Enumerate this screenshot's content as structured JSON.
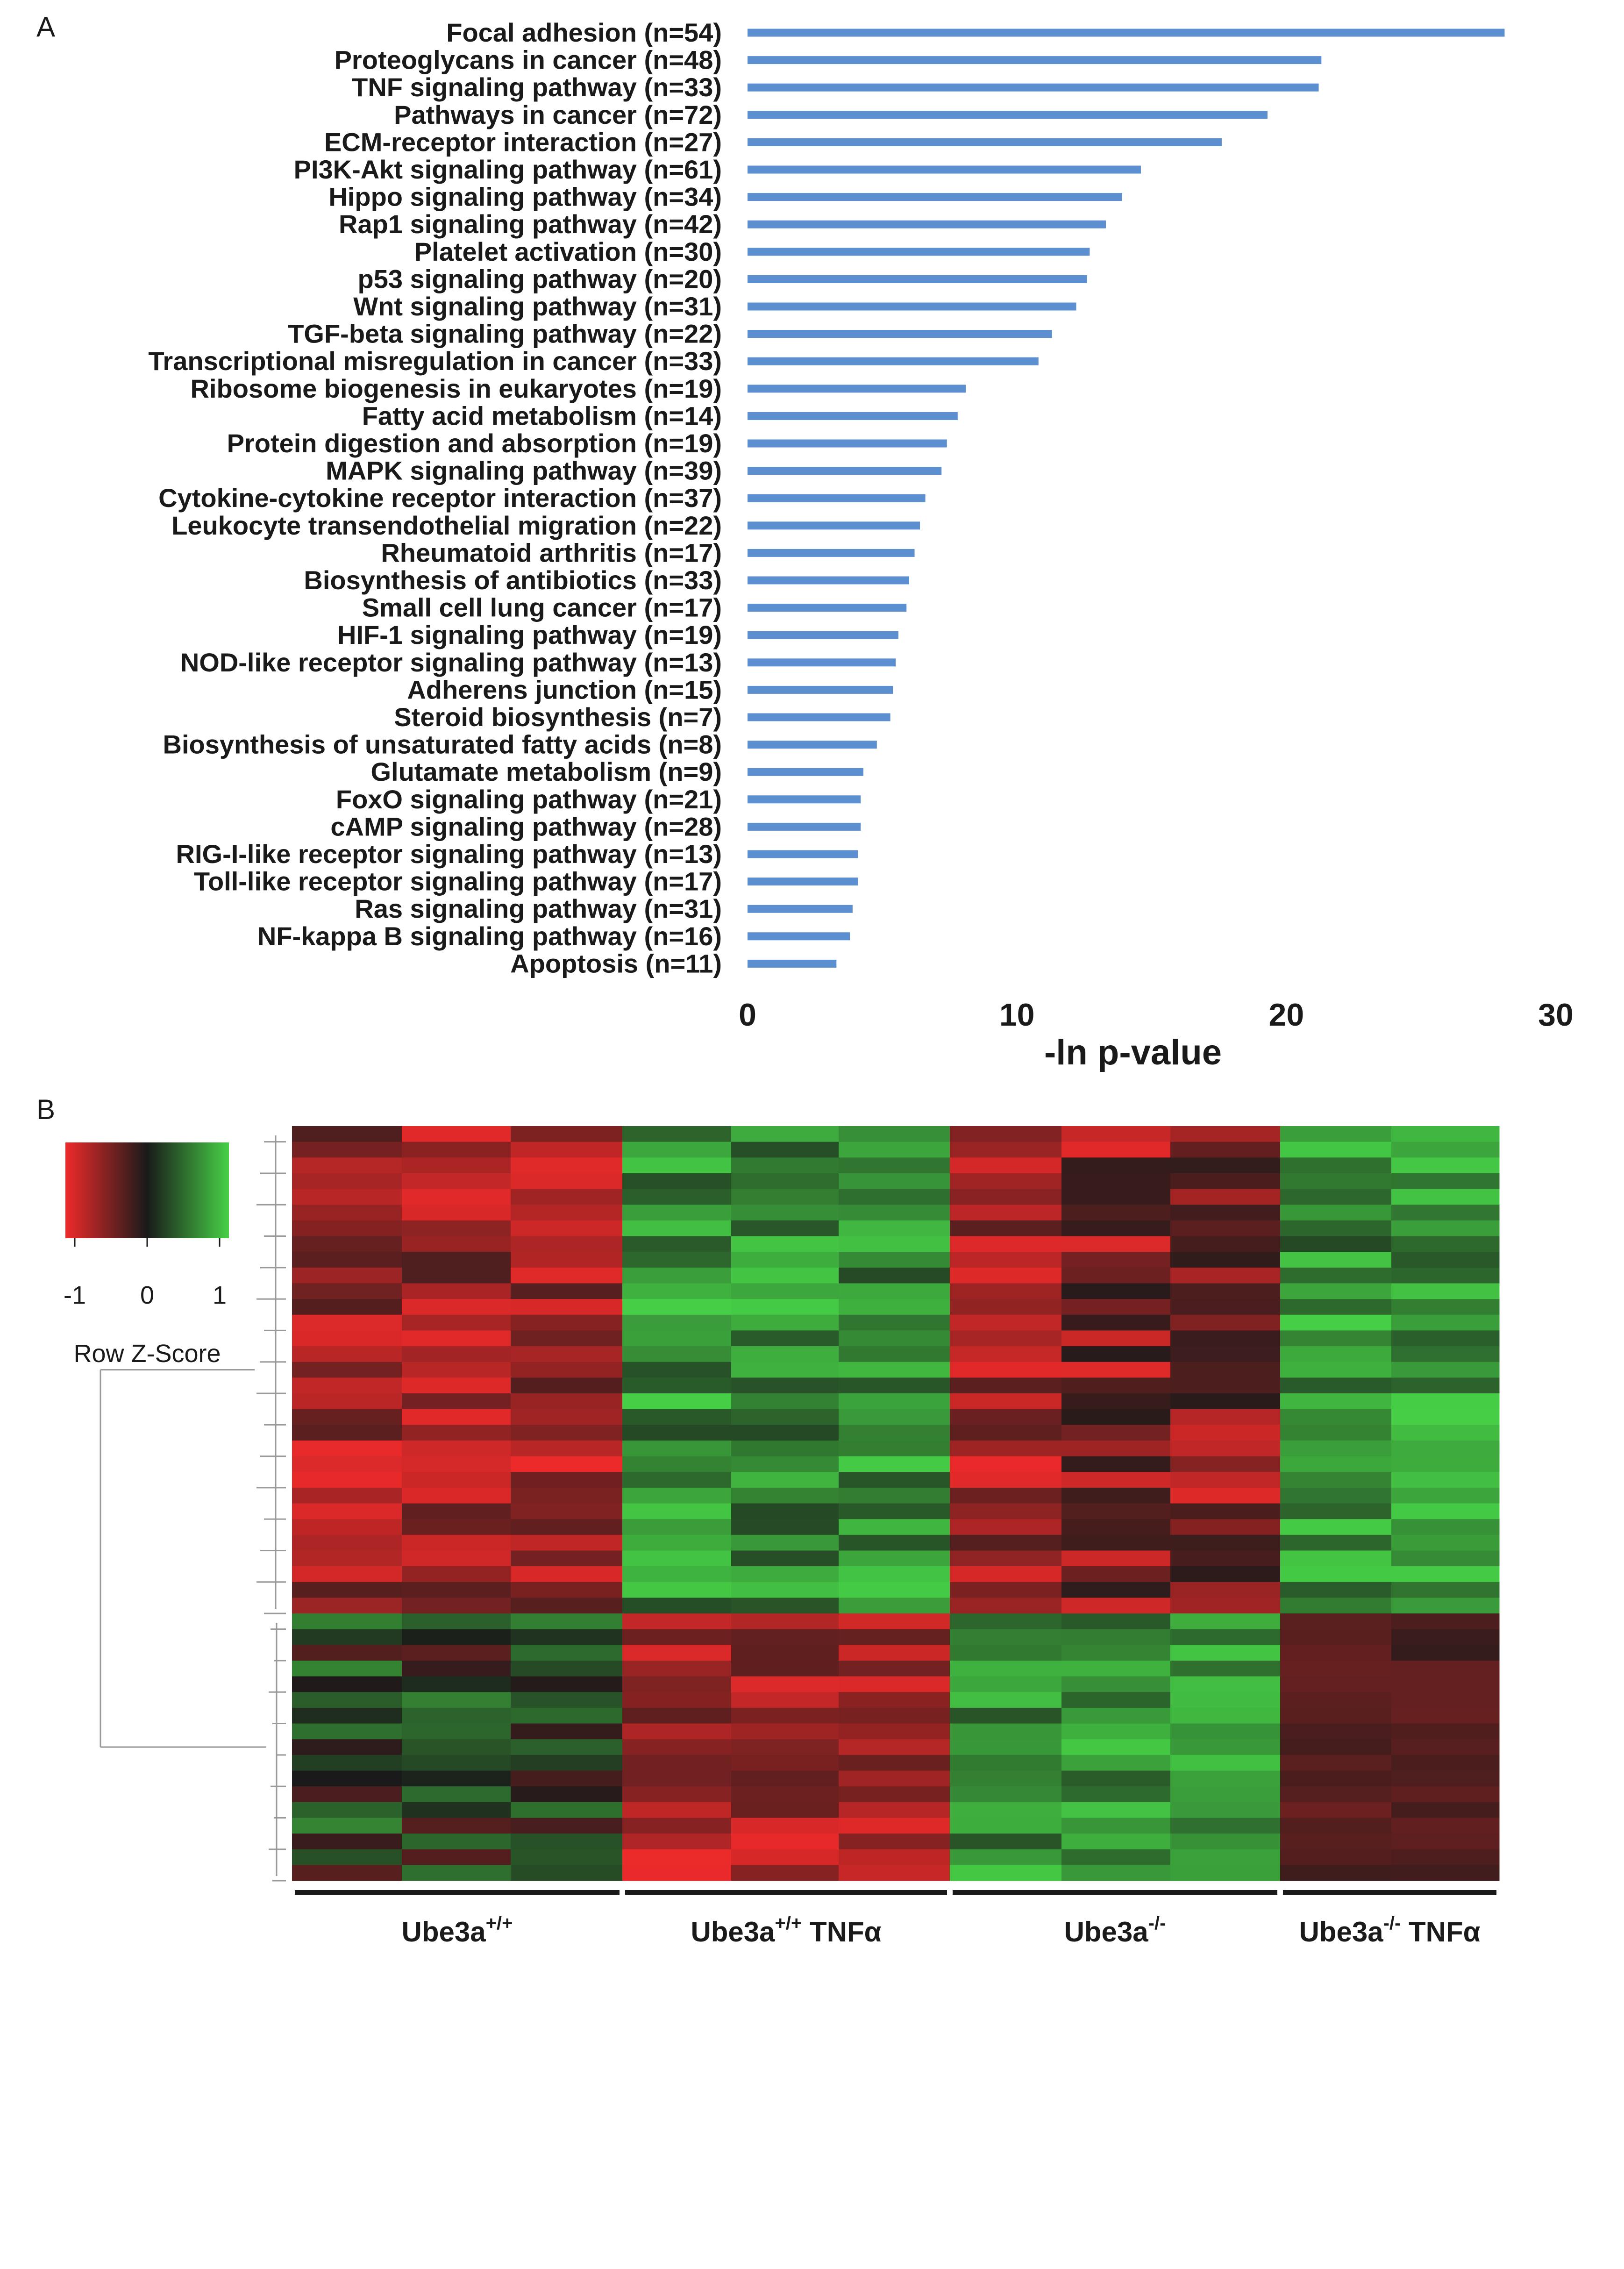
{
  "panel_a_label": "A",
  "panel_b_label": "B",
  "chart_data": [
    {
      "type": "bar",
      "orientation": "horizontal",
      "categories": [
        "Focal adhesion (n=54)",
        "Proteoglycans in cancer (n=48)",
        "TNF signaling pathway (n=33)",
        "Pathways in cancer (n=72)",
        "ECM-receptor interaction (n=27)",
        "PI3K-Akt signaling pathway (n=61)",
        "Hippo signaling pathway (n=34)",
        "Rap1 signaling pathway (n=42)",
        "Platelet activation (n=30)",
        "p53 signaling pathway (n=20)",
        "Wnt signaling pathway (n=31)",
        "TGF-beta signaling pathway (n=22)",
        "Transcriptional misregulation in cancer (n=33)",
        "Ribosome biogenesis in eukaryotes (n=19)",
        "Fatty acid metabolism (n=14)",
        "Protein digestion and absorption (n=19)",
        "MAPK signaling pathway (n=39)",
        "Cytokine-cytokine receptor interaction (n=37)",
        "Leukocyte transendothelial migration (n=22)",
        "Rheumatoid arthritis (n=17)",
        "Biosynthesis of antibiotics (n=33)",
        "Small cell lung cancer (n=17)",
        "HIF-1 signaling pathway (n=19)",
        "NOD-like receptor signaling pathway (n=13)",
        "Adherens junction (n=15)",
        "Steroid biosynthesis (n=7)",
        "Biosynthesis of unsaturated fatty acids (n=8)",
        "Glutamate metabolism (n=9)",
        "FoxO signaling pathway (n=21)",
        "cAMP signaling pathway (n=28)",
        "RIG-I-like receptor signaling pathway (n=13)",
        "Toll-like receptor signaling pathway (n=17)",
        "Ras signaling pathway (n=31)",
        "NF-kappa B signaling pathway (n=16)",
        "Apoptosis (n=11)"
      ],
      "values": [
        28.1,
        21.3,
        21.2,
        19.3,
        17.6,
        14.6,
        13.9,
        13.3,
        12.7,
        12.6,
        12.2,
        11.3,
        10.8,
        8.1,
        7.8,
        7.4,
        7.2,
        6.6,
        6.4,
        6.2,
        6.0,
        5.9,
        5.6,
        5.5,
        5.4,
        5.3,
        4.8,
        4.3,
        4.2,
        4.2,
        4.1,
        4.1,
        3.9,
        3.8,
        3.3
      ],
      "xlabel": "-ln p-value",
      "ylabel": "",
      "xlim": [
        0,
        30
      ],
      "xticks": [
        "0",
        "10",
        "20",
        "30"
      ],
      "color": "#5b8fd0"
    },
    {
      "type": "heatmap",
      "n_rows": 48,
      "n_cols": 11,
      "colorscale": [
        "#ee2a2a",
        "#1a1a1a",
        "#46d046"
      ],
      "zlim": [
        -1,
        1
      ],
      "legend": {
        "title": "Row Z-Score",
        "ticks": [
          "-1",
          "0",
          "1"
        ]
      },
      "groups": [
        {
          "base": "Ube3a",
          "sup": "+/+",
          "suffix": "",
          "columns": 3
        },
        {
          "base": "Ube3a",
          "sup": "+/+",
          "suffix": " TNFα",
          "columns": 3
        },
        {
          "base": "Ube3a",
          "sup": "-/-",
          "suffix": "",
          "columns": 3
        },
        {
          "base": "Ube3a",
          "sup": "-/-",
          "suffix": " TNFα",
          "columns": 2
        }
      ],
      "cluster_split_row": 31
    }
  ]
}
